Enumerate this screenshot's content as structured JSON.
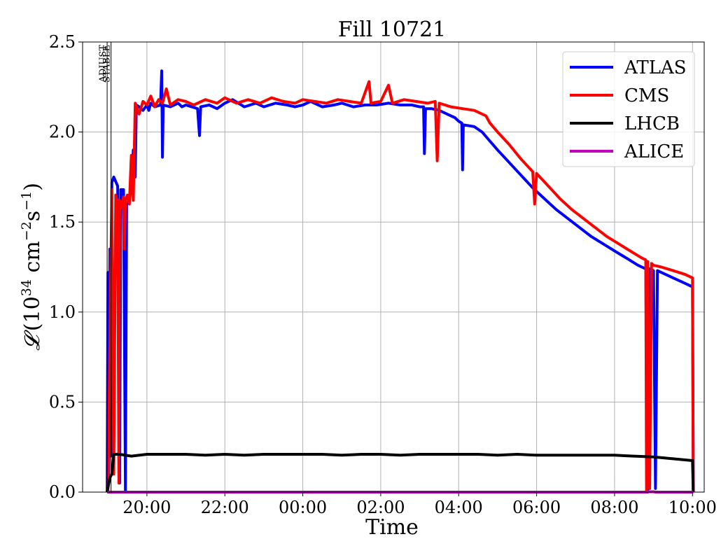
{
  "chart_data": {
    "type": "line",
    "title": "Fill 10721",
    "xlabel": "Time",
    "ylabel_parts": {
      "symbol": "𝓛",
      "open": "(10",
      "exp1": "34",
      "mid": " cm",
      "exp2": "−2",
      "s": "s",
      "exp3": "−1",
      "close": ")"
    },
    "x_unit": "hours after 18:00 on the fill start day",
    "xlim": [
      0.35,
      16.3
    ],
    "ylim": [
      0.0,
      2.5
    ],
    "x_ticks": [
      {
        "x": 2,
        "label": "20:00"
      },
      {
        "x": 4,
        "label": "22:00"
      },
      {
        "x": 6,
        "label": "00:00"
      },
      {
        "x": 8,
        "label": "02:00"
      },
      {
        "x": 10,
        "label": "04:00"
      },
      {
        "x": 12,
        "label": "06:00"
      },
      {
        "x": 14,
        "label": "08:00"
      },
      {
        "x": 16,
        "label": "10:00"
      }
    ],
    "y_ticks": [
      {
        "y": 0.0,
        "label": "0.0"
      },
      {
        "y": 0.5,
        "label": "0.5"
      },
      {
        "y": 1.0,
        "label": "1.0"
      },
      {
        "y": 1.5,
        "label": "1.5"
      },
      {
        "y": 2.0,
        "label": "2.0"
      },
      {
        "y": 2.5,
        "label": "2.5"
      }
    ],
    "grid": true,
    "legend_position": "top-right",
    "markers": [
      {
        "label": "ADJUST",
        "x": 0.98
      },
      {
        "label": "STABLE",
        "x": 1.08
      }
    ],
    "series": [
      {
        "name": "ATLAS",
        "color": "#0000ff",
        "points": [
          [
            0.98,
            0.0
          ],
          [
            1.0,
            1.22
          ],
          [
            1.02,
            0.1
          ],
          [
            1.05,
            1.35
          ],
          [
            1.08,
            0.2
          ],
          [
            1.1,
            1.72
          ],
          [
            1.15,
            1.75
          ],
          [
            1.25,
            1.7
          ],
          [
            1.3,
            0.05
          ],
          [
            1.33,
            1.68
          ],
          [
            1.4,
            1.68
          ],
          [
            1.45,
            0.0
          ],
          [
            1.48,
            1.6
          ],
          [
            1.55,
            1.62
          ],
          [
            1.6,
            1.7
          ],
          [
            1.65,
            1.9
          ],
          [
            1.7,
            1.75
          ],
          [
            1.73,
            2.15
          ],
          [
            1.8,
            2.14
          ],
          [
            1.9,
            2.12
          ],
          [
            2.0,
            2.15
          ],
          [
            2.05,
            2.12
          ],
          [
            2.1,
            2.16
          ],
          [
            2.2,
            2.14
          ],
          [
            2.35,
            2.15
          ],
          [
            2.38,
            2.34
          ],
          [
            2.4,
            1.86
          ],
          [
            2.42,
            2.15
          ],
          [
            2.6,
            2.14
          ],
          [
            2.8,
            2.16
          ],
          [
            2.9,
            2.14
          ],
          [
            3.0,
            2.15
          ],
          [
            3.3,
            2.13
          ],
          [
            3.35,
            1.98
          ],
          [
            3.38,
            2.14
          ],
          [
            3.6,
            2.15
          ],
          [
            3.8,
            2.13
          ],
          [
            4.0,
            2.16
          ],
          [
            4.2,
            2.18
          ],
          [
            4.5,
            2.14
          ],
          [
            4.8,
            2.16
          ],
          [
            5.0,
            2.14
          ],
          [
            5.3,
            2.16
          ],
          [
            5.6,
            2.15
          ],
          [
            5.8,
            2.14
          ],
          [
            6.0,
            2.15
          ],
          [
            6.2,
            2.17
          ],
          [
            6.5,
            2.14
          ],
          [
            6.8,
            2.15
          ],
          [
            7.0,
            2.16
          ],
          [
            7.3,
            2.14
          ],
          [
            7.6,
            2.15
          ],
          [
            7.9,
            2.15
          ],
          [
            8.2,
            2.16
          ],
          [
            8.5,
            2.15
          ],
          [
            8.8,
            2.15
          ],
          [
            9.0,
            2.14
          ],
          [
            9.1,
            2.14
          ],
          [
            9.12,
            1.88
          ],
          [
            9.15,
            2.13
          ],
          [
            9.3,
            2.13
          ],
          [
            9.5,
            2.12
          ],
          [
            9.7,
            2.1
          ],
          [
            9.9,
            2.08
          ],
          [
            10.0,
            2.06
          ],
          [
            10.08,
            2.05
          ],
          [
            10.1,
            1.79
          ],
          [
            10.12,
            2.04
          ],
          [
            10.4,
            2.03
          ],
          [
            10.6,
            2.0
          ],
          [
            10.8,
            1.95
          ],
          [
            11.0,
            1.9
          ],
          [
            11.3,
            1.83
          ],
          [
            11.6,
            1.76
          ],
          [
            11.9,
            1.69
          ],
          [
            12.2,
            1.63
          ],
          [
            12.5,
            1.57
          ],
          [
            12.8,
            1.52
          ],
          [
            13.1,
            1.47
          ],
          [
            13.4,
            1.42
          ],
          [
            13.7,
            1.38
          ],
          [
            14.0,
            1.34
          ],
          [
            14.3,
            1.3
          ],
          [
            14.6,
            1.26
          ],
          [
            14.8,
            1.24
          ],
          [
            14.85,
            0.0
          ],
          [
            14.9,
            1.24
          ],
          [
            15.0,
            1.23
          ],
          [
            15.05,
            0.02
          ],
          [
            15.1,
            1.23
          ],
          [
            15.2,
            1.22
          ],
          [
            15.5,
            1.19
          ],
          [
            15.8,
            1.16
          ],
          [
            16.0,
            1.14
          ],
          [
            16.02,
            0.0
          ]
        ]
      },
      {
        "name": "CMS",
        "color": "#ff0000",
        "points": [
          [
            1.0,
            0.0
          ],
          [
            1.1,
            1.68
          ],
          [
            1.15,
            0.1
          ],
          [
            1.2,
            1.65
          ],
          [
            1.25,
            1.6
          ],
          [
            1.28,
            0.05
          ],
          [
            1.3,
            1.62
          ],
          [
            1.35,
            1.58
          ],
          [
            1.4,
            1.64
          ],
          [
            1.42,
            1.35
          ],
          [
            1.45,
            1.62
          ],
          [
            1.5,
            1.65
          ],
          [
            1.55,
            1.6
          ],
          [
            1.6,
            1.87
          ],
          [
            1.65,
            1.62
          ],
          [
            1.7,
            2.16
          ],
          [
            1.8,
            2.1
          ],
          [
            1.9,
            2.17
          ],
          [
            2.0,
            2.15
          ],
          [
            2.1,
            2.2
          ],
          [
            2.2,
            2.14
          ],
          [
            2.3,
            2.18
          ],
          [
            2.4,
            2.16
          ],
          [
            2.5,
            2.24
          ],
          [
            2.6,
            2.15
          ],
          [
            2.8,
            2.18
          ],
          [
            3.0,
            2.17
          ],
          [
            3.2,
            2.15
          ],
          [
            3.5,
            2.18
          ],
          [
            3.8,
            2.16
          ],
          [
            4.0,
            2.19
          ],
          [
            4.3,
            2.16
          ],
          [
            4.6,
            2.18
          ],
          [
            4.9,
            2.16
          ],
          [
            5.2,
            2.19
          ],
          [
            5.5,
            2.17
          ],
          [
            5.8,
            2.16
          ],
          [
            6.0,
            2.18
          ],
          [
            6.3,
            2.17
          ],
          [
            6.6,
            2.16
          ],
          [
            6.9,
            2.18
          ],
          [
            7.2,
            2.17
          ],
          [
            7.5,
            2.16
          ],
          [
            7.7,
            2.28
          ],
          [
            7.75,
            2.16
          ],
          [
            8.0,
            2.17
          ],
          [
            8.2,
            2.26
          ],
          [
            8.3,
            2.16
          ],
          [
            8.6,
            2.18
          ],
          [
            8.9,
            2.17
          ],
          [
            9.2,
            2.16
          ],
          [
            9.4,
            2.17
          ],
          [
            9.45,
            1.84
          ],
          [
            9.5,
            2.16
          ],
          [
            9.8,
            2.14
          ],
          [
            10.1,
            2.13
          ],
          [
            10.4,
            2.12
          ],
          [
            10.7,
            2.09
          ],
          [
            10.8,
            2.05
          ],
          [
            11.0,
            2.0
          ],
          [
            11.3,
            1.93
          ],
          [
            11.6,
            1.85
          ],
          [
            11.9,
            1.78
          ],
          [
            11.95,
            1.6
          ],
          [
            12.0,
            1.77
          ],
          [
            12.3,
            1.7
          ],
          [
            12.6,
            1.63
          ],
          [
            12.9,
            1.57
          ],
          [
            13.2,
            1.52
          ],
          [
            13.5,
            1.47
          ],
          [
            13.8,
            1.42
          ],
          [
            14.1,
            1.38
          ],
          [
            14.4,
            1.34
          ],
          [
            14.7,
            1.3
          ],
          [
            14.8,
            1.29
          ],
          [
            14.82,
            0.0
          ],
          [
            14.85,
            1.28
          ],
          [
            14.9,
            0.02
          ],
          [
            14.95,
            1.27
          ],
          [
            15.0,
            1.26
          ],
          [
            15.2,
            1.25
          ],
          [
            15.5,
            1.23
          ],
          [
            15.8,
            1.21
          ],
          [
            16.0,
            1.19
          ],
          [
            16.02,
            0.0
          ]
        ]
      },
      {
        "name": "LHCB",
        "color": "#000000",
        "points": [
          [
            0.98,
            0.0
          ],
          [
            1.05,
            0.08
          ],
          [
            1.1,
            0.1
          ],
          [
            1.15,
            0.21
          ],
          [
            1.3,
            0.21
          ],
          [
            1.6,
            0.2
          ],
          [
            2.0,
            0.21
          ],
          [
            2.5,
            0.21
          ],
          [
            3.0,
            0.21
          ],
          [
            3.5,
            0.205
          ],
          [
            4.0,
            0.21
          ],
          [
            4.5,
            0.205
          ],
          [
            5.0,
            0.21
          ],
          [
            5.5,
            0.21
          ],
          [
            6.0,
            0.21
          ],
          [
            6.5,
            0.21
          ],
          [
            7.0,
            0.205
          ],
          [
            7.5,
            0.21
          ],
          [
            8.0,
            0.21
          ],
          [
            8.5,
            0.205
          ],
          [
            9.0,
            0.21
          ],
          [
            9.5,
            0.21
          ],
          [
            10.0,
            0.21
          ],
          [
            10.5,
            0.21
          ],
          [
            11.0,
            0.205
          ],
          [
            11.5,
            0.21
          ],
          [
            12.0,
            0.205
          ],
          [
            12.5,
            0.205
          ],
          [
            13.0,
            0.205
          ],
          [
            13.5,
            0.205
          ],
          [
            14.0,
            0.205
          ],
          [
            14.5,
            0.2
          ],
          [
            15.0,
            0.195
          ],
          [
            15.5,
            0.185
          ],
          [
            16.0,
            0.175
          ],
          [
            16.02,
            0.0
          ]
        ]
      },
      {
        "name": "ALICE",
        "color": "#bf00bf",
        "points": [
          [
            0.98,
            0.0
          ],
          [
            14.8,
            0.0
          ],
          [
            14.85,
            0.002
          ],
          [
            15.0,
            0.002
          ],
          [
            15.05,
            0.0
          ],
          [
            16.02,
            0.0
          ]
        ]
      }
    ]
  }
}
